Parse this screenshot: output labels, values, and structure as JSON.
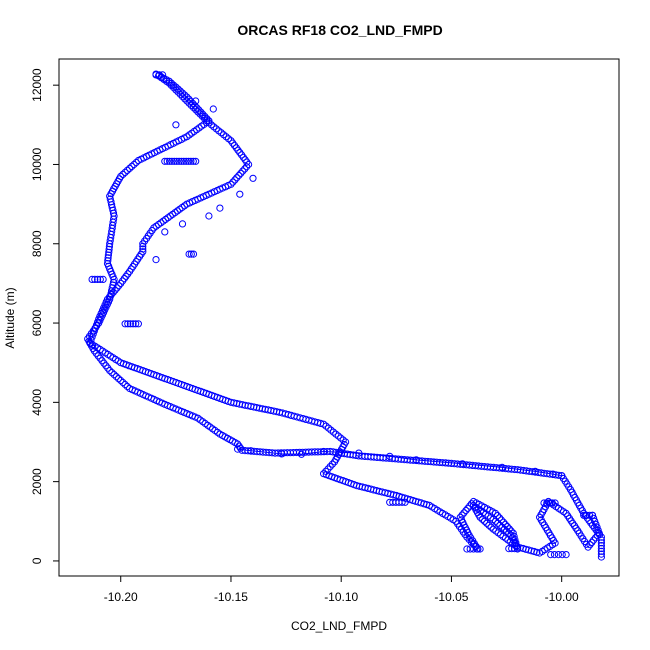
{
  "chart_data": {
    "type": "scatter",
    "title": "ORCAS RF18 CO2_LND_FMPD",
    "xlabel": "CO2_LND_FMPD",
    "ylabel": "Altitude (m)",
    "xlim": [
      -10.228,
      -9.974
    ],
    "ylim": [
      -380,
      12660
    ],
    "xticks": [
      -10.2,
      -10.15,
      -10.1,
      -10.05,
      -10.0
    ],
    "xtick_labels": [
      "-10.20",
      "-10.15",
      "-10.10",
      "-10.05",
      "-10.00"
    ],
    "yticks": [
      0,
      2000,
      4000,
      6000,
      8000,
      10000,
      12000
    ],
    "ytick_labels": [
      "0",
      "2000",
      "4000",
      "6000",
      "8000",
      "10000",
      "12000"
    ],
    "grid": false,
    "marker": "open-circle",
    "connect_points": true,
    "series_color": "#0000ff",
    "path_knots": [
      [
        -9.982,
        100
      ],
      [
        -9.982,
        600
      ],
      [
        -9.99,
        1200
      ],
      [
        -9.996,
        1800
      ],
      [
        -10.0,
        2150
      ],
      [
        -10.02,
        2300
      ],
      [
        -10.05,
        2460
      ],
      [
        -10.07,
        2550
      ],
      [
        -10.092,
        2650
      ],
      [
        -10.105,
        2760
      ],
      [
        -10.13,
        2720
      ],
      [
        -10.145,
        2790
      ],
      [
        -10.147,
        2950
      ],
      [
        -10.155,
        3200
      ],
      [
        -10.165,
        3600
      ],
      [
        -10.18,
        3950
      ],
      [
        -10.196,
        4350
      ],
      [
        -10.205,
        4800
      ],
      [
        -10.212,
        5300
      ],
      [
        -10.215,
        5600
      ],
      [
        -10.21,
        6000
      ],
      [
        -10.205,
        6600
      ],
      [
        -10.203,
        7100
      ],
      [
        -10.206,
        7500
      ],
      [
        -10.205,
        8000
      ],
      [
        -10.203,
        8700
      ],
      [
        -10.205,
        9200
      ],
      [
        -10.2,
        9700
      ],
      [
        -10.192,
        10100
      ],
      [
        -10.17,
        10700
      ],
      [
        -10.16,
        11100
      ],
      [
        -10.17,
        11700
      ],
      [
        -10.178,
        12100
      ],
      [
        -10.184,
        12280
      ],
      [
        -10.178,
        12050
      ],
      [
        -10.17,
        11600
      ],
      [
        -10.16,
        11050
      ],
      [
        -10.15,
        10600
      ],
      [
        -10.142,
        10000
      ],
      [
        -10.15,
        9500
      ],
      [
        -10.17,
        9000
      ],
      [
        -10.185,
        8400
      ],
      [
        -10.19,
        8000
      ],
      [
        -10.19,
        7800
      ],
      [
        -10.196,
        7300
      ],
      [
        -10.2,
        7000
      ],
      [
        -10.206,
        6600
      ],
      [
        -10.21,
        6100
      ],
      [
        -10.214,
        5500
      ],
      [
        -10.2,
        5000
      ],
      [
        -10.185,
        4700
      ],
      [
        -10.17,
        4400
      ],
      [
        -10.15,
        4000
      ],
      [
        -10.128,
        3750
      ],
      [
        -10.108,
        3450
      ],
      [
        -10.098,
        3000
      ],
      [
        -10.103,
        2500
      ],
      [
        -10.108,
        2200
      ],
      [
        -10.093,
        1900
      ],
      [
        -10.075,
        1650
      ],
      [
        -10.06,
        1400
      ],
      [
        -10.048,
        1000
      ],
      [
        -10.043,
        600
      ],
      [
        -10.038,
        300
      ],
      [
        -10.042,
        650
      ],
      [
        -10.046,
        1100
      ],
      [
        -10.04,
        1500
      ],
      [
        -10.03,
        1200
      ],
      [
        -10.022,
        700
      ],
      [
        -10.02,
        300
      ],
      [
        -10.023,
        650
      ],
      [
        -10.03,
        1000
      ],
      [
        -10.04,
        1400
      ],
      [
        -10.037,
        1100
      ],
      [
        -10.031,
        800
      ],
      [
        -10.02,
        350
      ],
      [
        -10.01,
        200
      ],
      [
        -10.003,
        450
      ],
      [
        -10.01,
        1100
      ],
      [
        -10.006,
        1500
      ],
      [
        -9.998,
        1200
      ],
      [
        -9.992,
        700
      ],
      [
        -9.988,
        350
      ],
      [
        -9.983,
        700
      ],
      [
        -9.986,
        1150
      ]
    ],
    "clusters": [
      {
        "x": -10.18,
        "y": 10080,
        "x2": -10.166,
        "count": 14
      },
      {
        "x": -10.213,
        "y": 7100,
        "x2": -10.208,
        "count": 5
      },
      {
        "x": -10.198,
        "y": 5980,
        "x2": -10.192,
        "count": 6
      },
      {
        "x": -10.078,
        "y": 1480,
        "x2": -10.071,
        "count": 6
      },
      {
        "x": -10.008,
        "y": 1460,
        "x2": -10.003,
        "count": 5
      },
      {
        "x": -9.99,
        "y": 1150,
        "x2": -9.986,
        "count": 4
      },
      {
        "x": -10.005,
        "y": 160,
        "x2": -9.998,
        "count": 5
      },
      {
        "x": -10.043,
        "y": 300,
        "x2": -10.037,
        "count": 5
      },
      {
        "x": -10.024,
        "y": 310,
        "x2": -10.02,
        "count": 4
      },
      {
        "x": -10.169,
        "y": 7740,
        "x2": -10.167,
        "count": 3
      },
      {
        "x": -10.184,
        "y": 12260,
        "x2": -10.181,
        "count": 3
      }
    ],
    "sparse_transit": [
      [
        -10.147,
        2820
      ],
      [
        -10.141,
        2780
      ],
      [
        -10.127,
        2700
      ],
      [
        -10.118,
        2690
      ],
      [
        -10.108,
        2760
      ],
      [
        -10.092,
        2720
      ],
      [
        -10.078,
        2640
      ],
      [
        -10.066,
        2550
      ],
      [
        -10.045,
        2450
      ],
      [
        -10.027,
        2360
      ],
      [
        -10.012,
        2260
      ],
      [
        -10.004,
        2190
      ],
      [
        -10.0,
        2150
      ],
      [
        -10.184,
        7600
      ],
      [
        -10.18,
        8300
      ],
      [
        -10.172,
        8500
      ],
      [
        -10.16,
        8700
      ],
      [
        -10.155,
        8900
      ],
      [
        -10.146,
        9250
      ],
      [
        -10.14,
        9650
      ],
      [
        -10.158,
        11400
      ],
      [
        -10.166,
        11600
      ],
      [
        -10.175,
        11000
      ]
    ]
  }
}
